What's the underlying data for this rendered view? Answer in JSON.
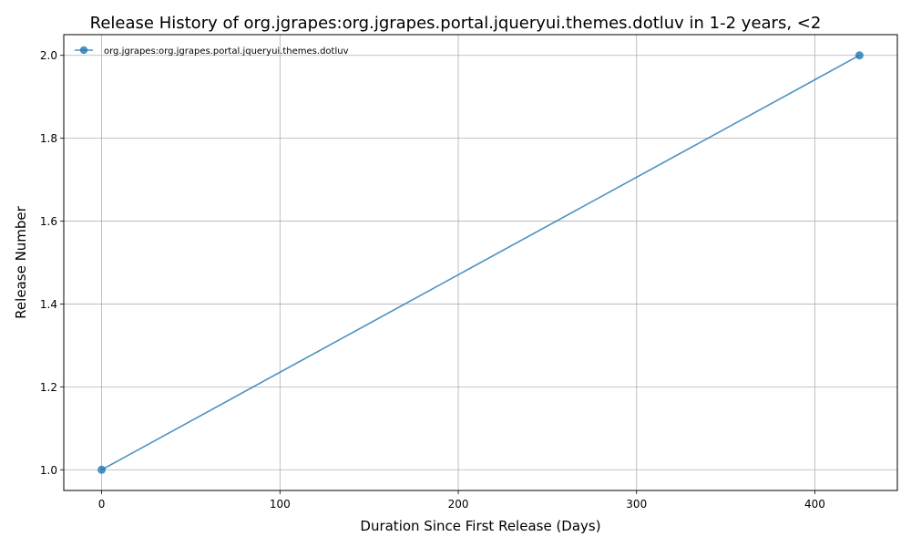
{
  "chart_data": {
    "type": "line",
    "title": "Release History of org.jgrapes:org.jgrapes.portal.jqueryui.themes.dotluv in 1-2 years, <2",
    "xlabel": "Duration Since First Release (Days)",
    "ylabel": "Release Number",
    "xlim": [
      -21.25,
      446.25
    ],
    "ylim": [
      0.95,
      2.05
    ],
    "xticks": [
      0,
      100,
      200,
      300,
      400
    ],
    "yticks": [
      1.0,
      1.2,
      1.4,
      1.6,
      1.8,
      2.0
    ],
    "xtick_labels": [
      "0",
      "100",
      "200",
      "300",
      "400"
    ],
    "ytick_labels": [
      "1.0",
      "1.2",
      "1.4",
      "1.6",
      "1.8",
      "2.0"
    ],
    "grid": true,
    "legend_placement": "top-left",
    "series": [
      {
        "name": "org.jgrapes:org.jgrapes.portal.jqueryui.themes.dotluv",
        "color": "#1f77b4",
        "marker": "circle",
        "x": [
          0,
          425
        ],
        "y": [
          1,
          2
        ]
      }
    ]
  }
}
